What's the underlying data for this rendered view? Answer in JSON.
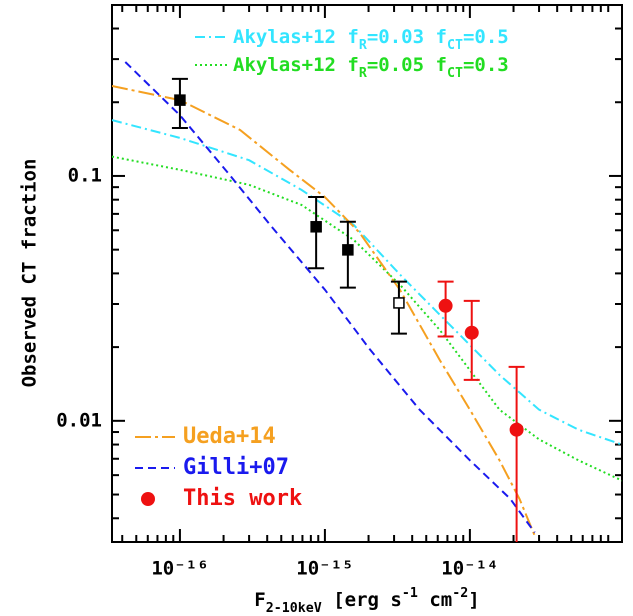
{
  "chart_data": {
    "type": "line",
    "xlabel": [
      {
        "text": "F"
      },
      {
        "text": "2-10keV",
        "sub": true
      },
      {
        "text": " [erg s"
      },
      {
        "text": "-1",
        "sup": true
      },
      {
        "text": " cm"
      },
      {
        "text": "-2",
        "sup": true
      },
      {
        "text": "]"
      }
    ],
    "ylabel": "Observed CT fraction",
    "xlog": true,
    "ylog": true,
    "xlim": [
      3.4e-17,
      1.12e-13
    ],
    "ylim": [
      0.0032,
      0.499
    ],
    "xticks": [
      {
        "value": 1e-16,
        "label": "10⁻¹⁶"
      },
      {
        "value": 1e-15,
        "label": "10⁻¹⁵"
      },
      {
        "value": 1e-14,
        "label": "10⁻¹⁴"
      }
    ],
    "yticks": [
      0.01,
      0.1
    ],
    "xminor_ticks": [
      4e-17,
      5e-17,
      6e-17,
      7e-17,
      8e-17,
      9e-17,
      2e-16,
      3e-16,
      4e-16,
      5e-16,
      6e-16,
      7e-16,
      8e-16,
      9e-16,
      2e-15,
      3e-15,
      4e-15,
      5e-15,
      6e-15,
      7e-15,
      8e-15,
      9e-15,
      2e-14,
      3e-14,
      4e-14,
      5e-14,
      6e-14,
      7e-14,
      8e-14,
      9e-14
    ],
    "yminor_ticks": [
      0.004,
      0.005,
      0.006,
      0.007,
      0.008,
      0.009,
      0.02,
      0.03,
      0.04,
      0.05,
      0.06,
      0.07,
      0.08,
      0.09,
      0.2,
      0.3,
      0.4
    ],
    "series": [
      {
        "name_parts": [
          {
            "text": "Akylas+12  f"
          },
          {
            "text": "R",
            "sub": true
          },
          {
            "text": "=0.03  f"
          },
          {
            "text": "CT",
            "sub": true
          },
          {
            "text": "=0.5"
          }
        ],
        "legend": "top",
        "color": "#33e5ff",
        "dash": "10 4 2 4",
        "x": [
          3.4e-17,
          1e-16,
          3e-16,
          6.9e-16,
          1.58e-15,
          3.3e-15,
          6.2e-15,
          1e-14,
          1.6e-14,
          3e-14,
          5.6e-14,
          1.12e-13
        ],
        "values": [
          0.169,
          0.143,
          0.116,
          0.0877,
          0.0631,
          0.0395,
          0.0271,
          0.0204,
          0.0154,
          0.0111,
          0.0092,
          0.008
        ]
      },
      {
        "name_parts": [
          {
            "text": "Akylas+12  f"
          },
          {
            "text": "R",
            "sub": true
          },
          {
            "text": "=0.05  f"
          },
          {
            "text": "CT",
            "sub": true
          },
          {
            "text": "=0.3"
          }
        ],
        "legend": "top",
        "color": "#22dd22",
        "dash": "2 3",
        "x": [
          3.4e-17,
          1e-16,
          3e-16,
          6.9e-16,
          1.58e-15,
          3.3e-15,
          6.2e-15,
          1e-14,
          1.6e-14,
          3e-14,
          5.6e-14,
          1.12e-13
        ],
        "values": [
          0.12,
          0.106,
          0.092,
          0.0762,
          0.0548,
          0.0359,
          0.0235,
          0.0161,
          0.0111,
          0.0084,
          0.0069,
          0.0057
        ]
      },
      {
        "name": "Ueda+14",
        "legend": "bottom",
        "color": "#f5a020",
        "dash": "16 4 3 4",
        "x": [
          3.4e-17,
          1e-16,
          2.6e-16,
          5.7e-16,
          1e-15,
          1.74e-15,
          3.3e-15,
          6.2e-15,
          1e-14,
          1.6e-14,
          2.2e-14,
          2.8e-14
        ],
        "values": [
          0.233,
          0.204,
          0.154,
          0.106,
          0.082,
          0.0585,
          0.0342,
          0.0177,
          0.0111,
          0.0069,
          0.0048,
          0.0034
        ]
      },
      {
        "name": "Gilli+07",
        "legend": "bottom",
        "color": "#1a1aee",
        "dash": "8 5",
        "x": [
          4.2e-17,
          1e-16,
          2.2e-16,
          4.2e-16,
          1e-15,
          2.04e-15,
          4.5e-15,
          1e-14,
          1.9e-14,
          2.8e-14
        ],
        "values": [
          0.292,
          0.177,
          0.101,
          0.063,
          0.0343,
          0.0196,
          0.0111,
          0.0069,
          0.0048,
          0.0035
        ]
      }
    ],
    "points": [
      {
        "marker": "filled-square",
        "color": "#000000",
        "x": [
          1e-16,
          8.7e-16,
          1.44e-15
        ],
        "values": [
          0.204,
          0.062,
          0.0499
        ],
        "low": [
          0.157,
          0.042,
          0.035
        ],
        "high": [
          0.249,
          0.082,
          0.065
        ]
      },
      {
        "marker": "open-square",
        "color": "#000000",
        "x": [
          3.24e-15
        ],
        "values": [
          0.0303
        ],
        "low": [
          0.0227
        ],
        "high": [
          0.037
        ]
      },
      {
        "name": "This work",
        "marker": "circle",
        "color": "#ee1111",
        "x": [
          6.8e-15,
          1.03e-14,
          2.1e-14
        ],
        "values": [
          0.0295,
          0.0229,
          0.0092
        ],
        "low": [
          0.0221,
          0.0147,
          0.003
        ],
        "high": [
          0.037,
          0.0309,
          0.0166
        ]
      }
    ]
  }
}
